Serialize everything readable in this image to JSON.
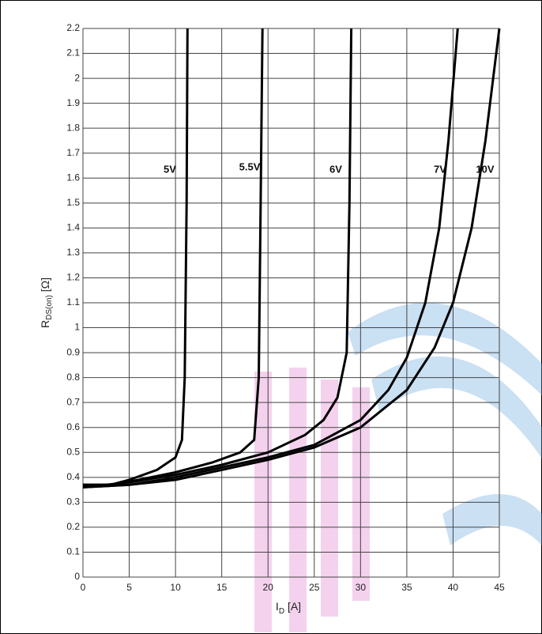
{
  "chart_data": {
    "type": "line",
    "y_label": {
      "main": "R",
      "sub": "DS(on)",
      "rest": " [Ω]"
    },
    "x_label": {
      "main": "I",
      "sub": "D",
      "rest": " [A]"
    },
    "xlim": [
      0,
      45
    ],
    "xticks": [
      0,
      5,
      10,
      15,
      20,
      25,
      30,
      35,
      40,
      45
    ],
    "ylim": [
      0,
      2.2
    ],
    "yticks": [
      0,
      0.1,
      0.2,
      0.3,
      0.4,
      0.5,
      0.6,
      0.7,
      0.8,
      0.9,
      1,
      1.1,
      1.2,
      1.3,
      1.4,
      1.5,
      1.6,
      1.7,
      1.8,
      1.9,
      2,
      2.1,
      2.2
    ],
    "grid": true,
    "series": [
      {
        "name": "5V",
        "color": "#000000",
        "x": [
          0,
          3,
          5,
          8,
          10,
          10.7,
          11,
          11.2,
          11.3
        ],
        "values": [
          0.37,
          0.37,
          0.39,
          0.43,
          0.48,
          0.55,
          0.8,
          1.5,
          2.2
        ]
      },
      {
        "name": "5.5V",
        "color": "#000000",
        "x": [
          0,
          3,
          6,
          10,
          14,
          17,
          18.5,
          19,
          19.2,
          19.4
        ],
        "values": [
          0.37,
          0.37,
          0.39,
          0.42,
          0.46,
          0.5,
          0.55,
          0.8,
          1.5,
          2.2
        ]
      },
      {
        "name": "6V",
        "color": "#000000",
        "x": [
          0,
          5,
          10,
          15,
          20,
          24,
          26,
          27.5,
          28.5,
          28.8,
          29
        ],
        "values": [
          0.36,
          0.38,
          0.41,
          0.45,
          0.5,
          0.57,
          0.63,
          0.72,
          0.9,
          1.5,
          2.2
        ]
      },
      {
        "name": "7V",
        "color": "#000000",
        "x": [
          0,
          5,
          10,
          15,
          20,
          25,
          30,
          33,
          35,
          37,
          38.5,
          39.5,
          40.5
        ],
        "values": [
          0.36,
          0.37,
          0.4,
          0.44,
          0.48,
          0.53,
          0.63,
          0.75,
          0.88,
          1.1,
          1.4,
          1.75,
          2.2
        ]
      },
      {
        "name": "10V",
        "color": "#000000",
        "x": [
          0,
          5,
          10,
          15,
          20,
          25,
          30,
          35,
          38,
          40,
          42,
          43.5,
          45
        ],
        "values": [
          0.36,
          0.37,
          0.39,
          0.43,
          0.47,
          0.52,
          0.6,
          0.75,
          0.92,
          1.1,
          1.4,
          1.75,
          2.2
        ]
      }
    ]
  }
}
